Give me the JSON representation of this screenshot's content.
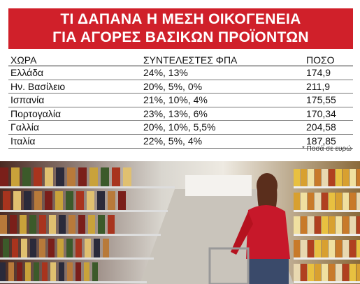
{
  "header": {
    "title": [
      "ΤΙ ΔΑΠΑΝΑ Η ΜΕΣΗ ΟΙΚΟΓΕΝΕΙΑ",
      "ΓΙΑ ΑΓΟΡΕΣ ΒΑΣΙΚΩΝ ΠΡΟΪΟΝΤΩΝ"
    ]
  },
  "table": {
    "columns": [
      "ΧΩΡΑ",
      "ΣΥΝΤΕΛΕΣΤΕΣ ΦΠΑ",
      "ΠΟΣΟ"
    ],
    "rows": [
      [
        "Ελλάδα",
        "24%, 13%",
        "174,9"
      ],
      [
        "Ην. Βασίλειο",
        "20%, 5%, 0%",
        "211,9"
      ],
      [
        "Ισπανία",
        "21%, 10%, 4%",
        "175,55"
      ],
      [
        "Πορτογαλία",
        "23%, 13%, 6%",
        "170,34"
      ],
      [
        "Γαλλία",
        "20%, 10%, 5,5%",
        "204,58"
      ],
      [
        "Ιταλία",
        "22%, 5%, 4%",
        "187,85"
      ]
    ]
  },
  "footnote": "* Ποσά σε ευρώ"
}
